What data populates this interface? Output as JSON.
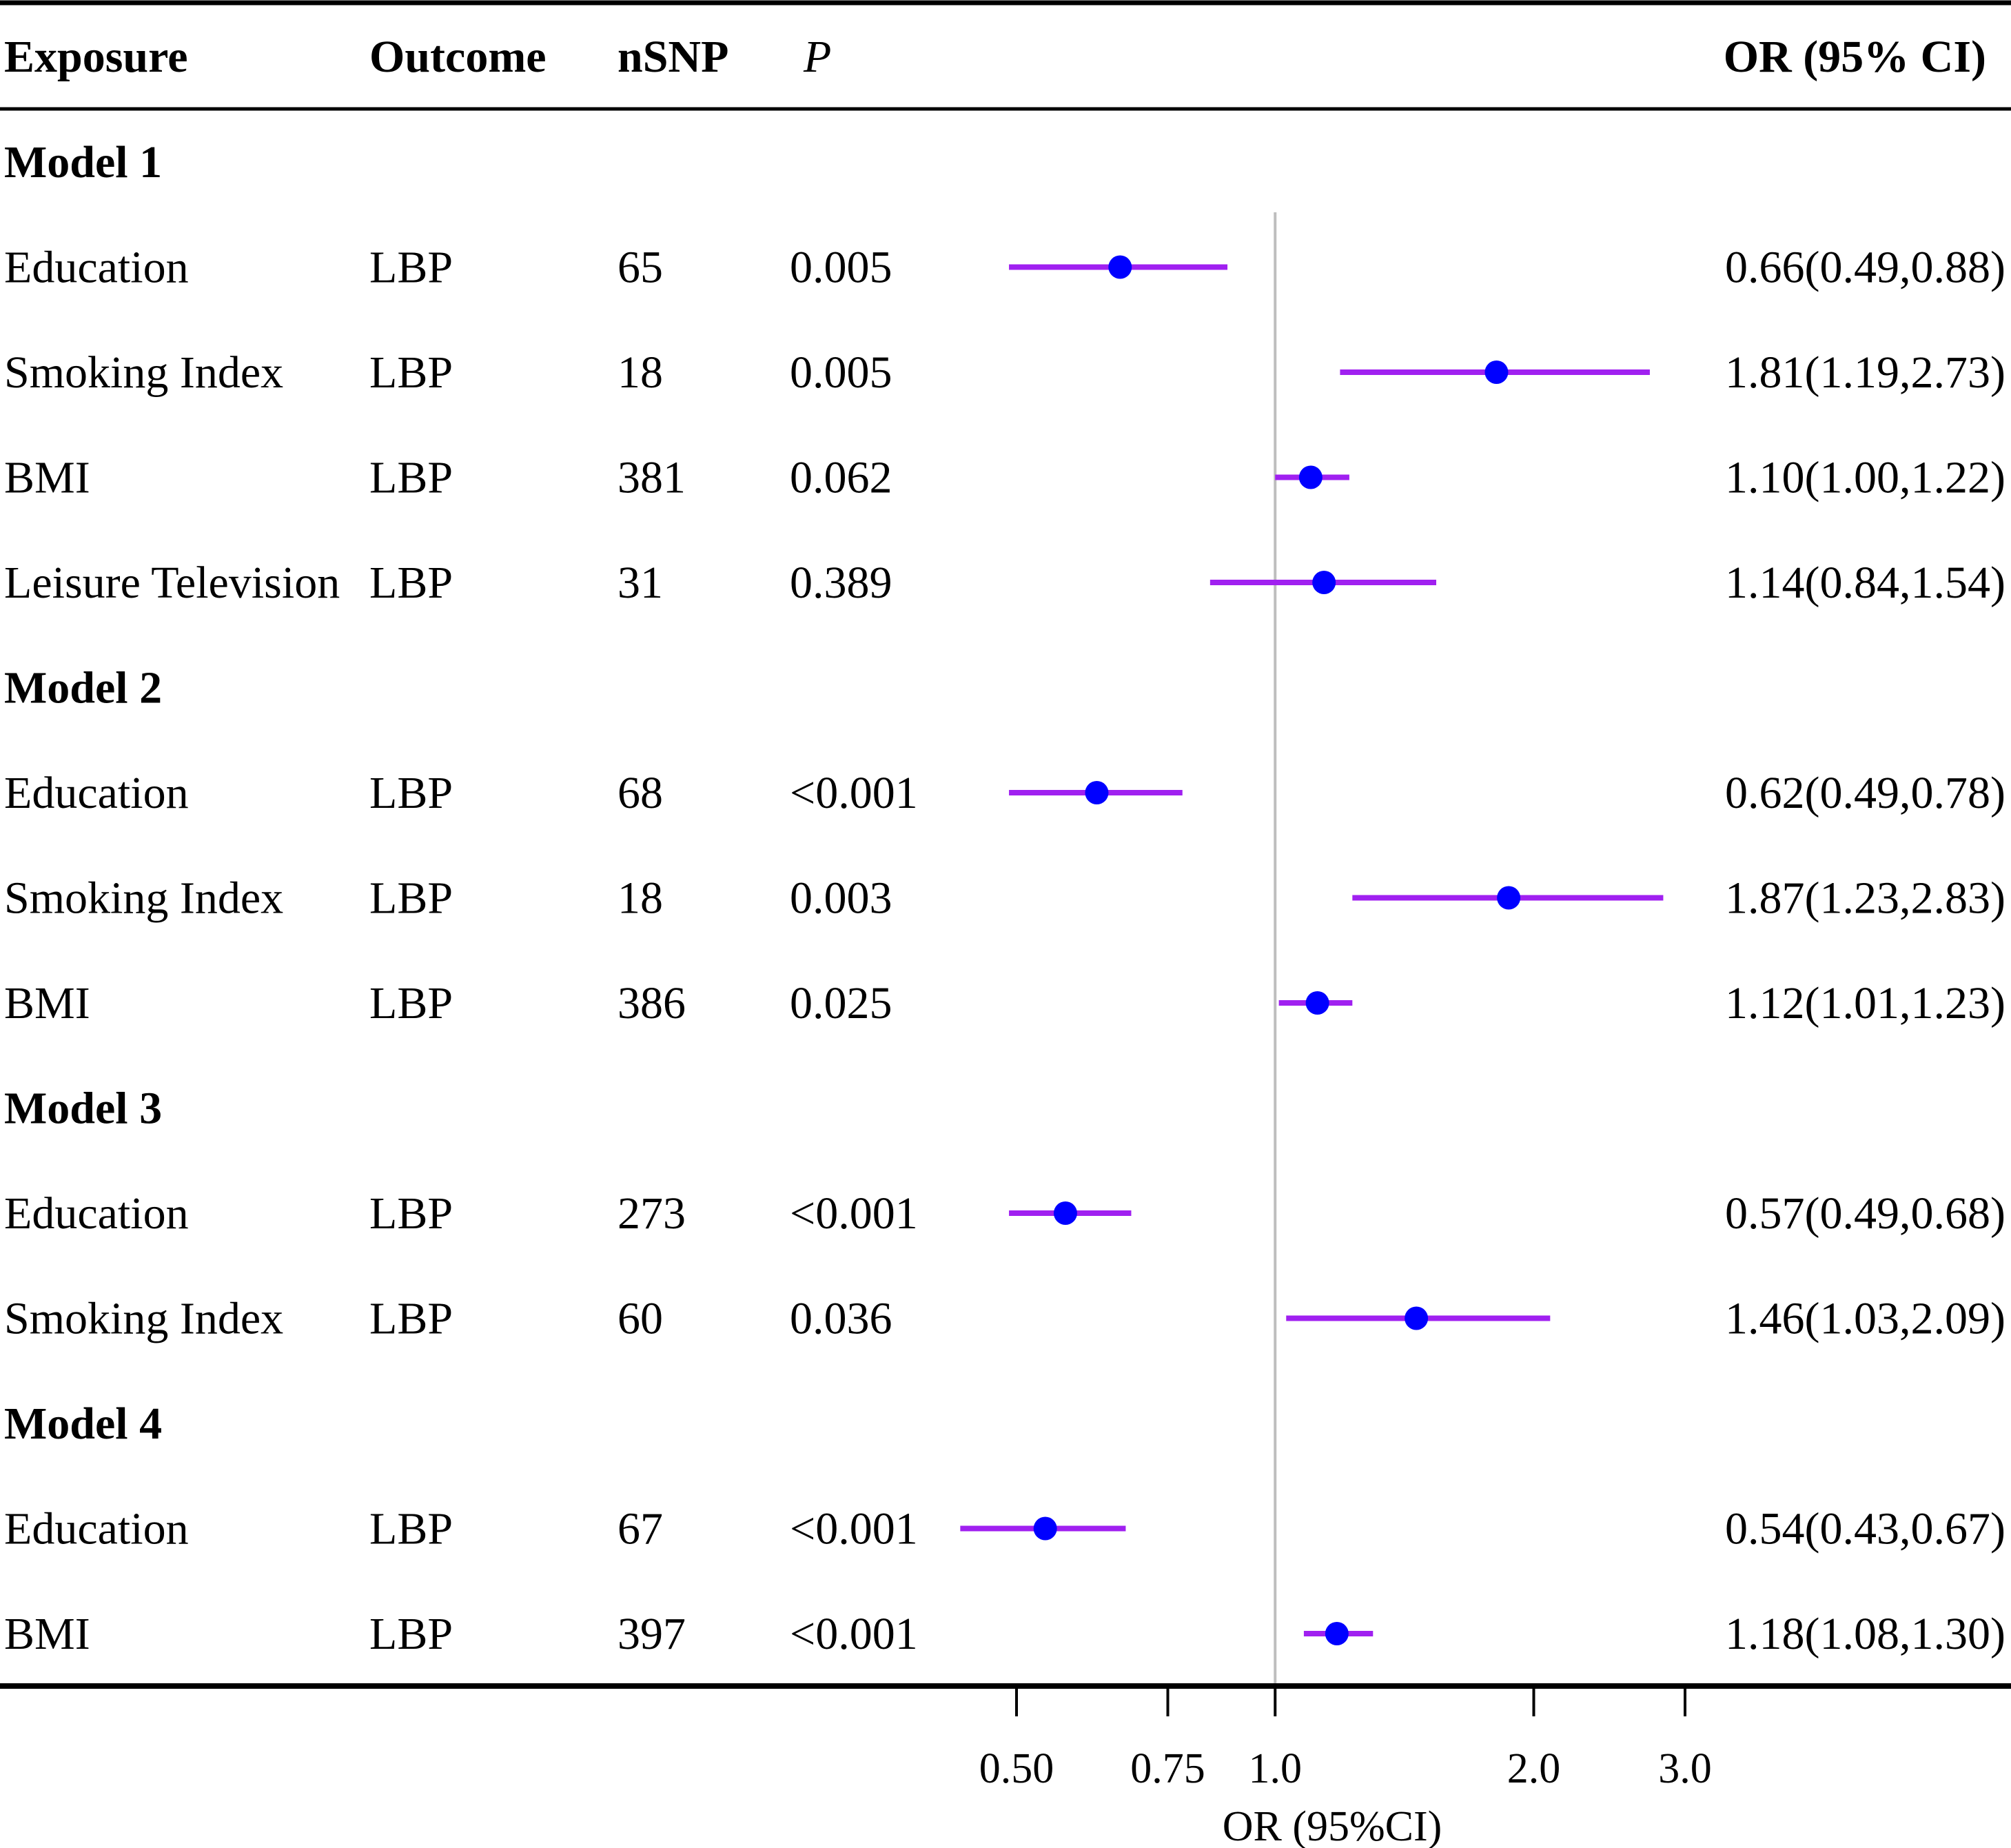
{
  "chart_data": {
    "type": "forest",
    "title": "",
    "columns": {
      "exposure": "Exposure",
      "outcome": "Outcome",
      "nsnp": "nSNP",
      "p": "P",
      "or_ci": "OR (95% CI)"
    },
    "xlabel": "OR (95%CI)",
    "x_scale": "log",
    "xlim": [
      0.44,
      3.4
    ],
    "reference_line": 1.0,
    "ticks": [
      {
        "value": 0.5,
        "label": "0.50"
      },
      {
        "value": 0.75,
        "label": "0.75"
      },
      {
        "value": 1.0,
        "label": "1.0"
      },
      {
        "value": 2.0,
        "label": "2.0"
      },
      {
        "value": 3.0,
        "label": "3.0"
      }
    ],
    "groups": [
      {
        "label": "Model 1",
        "rows": [
          {
            "exposure": "Education",
            "outcome": "LBP",
            "nsnp": "65",
            "p": "0.005",
            "or": 0.66,
            "lo": 0.49,
            "hi": 0.88,
            "text": "0.66(0.49,0.88)"
          },
          {
            "exposure": "Smoking Index",
            "outcome": "LBP",
            "nsnp": "18",
            "p": "0.005",
            "or": 1.81,
            "lo": 1.19,
            "hi": 2.73,
            "text": "1.81(1.19,2.73)"
          },
          {
            "exposure": "BMI",
            "outcome": "LBP",
            "nsnp": "381",
            "p": "0.062",
            "or": 1.1,
            "lo": 1.0,
            "hi": 1.22,
            "text": "1.10(1.00,1.22)"
          },
          {
            "exposure": "Leisure Television",
            "outcome": "LBP",
            "nsnp": "31",
            "p": "0.389",
            "or": 1.14,
            "lo": 0.84,
            "hi": 1.54,
            "text": "1.14(0.84,1.54)"
          }
        ]
      },
      {
        "label": "Model 2",
        "rows": [
          {
            "exposure": "Education",
            "outcome": "LBP",
            "nsnp": "68",
            "p": "<0.001",
            "or": 0.62,
            "lo": 0.49,
            "hi": 0.78,
            "text": "0.62(0.49,0.78)"
          },
          {
            "exposure": "Smoking Index",
            "outcome": "LBP",
            "nsnp": "18",
            "p": "0.003",
            "or": 1.87,
            "lo": 1.23,
            "hi": 2.83,
            "text": "1.87(1.23,2.83)"
          },
          {
            "exposure": "BMI",
            "outcome": "LBP",
            "nsnp": "386",
            "p": "0.025",
            "or": 1.12,
            "lo": 1.01,
            "hi": 1.23,
            "text": "1.12(1.01,1.23)"
          }
        ]
      },
      {
        "label": "Model 3",
        "rows": [
          {
            "exposure": "Education",
            "outcome": "LBP",
            "nsnp": "273",
            "p": "<0.001",
            "or": 0.57,
            "lo": 0.49,
            "hi": 0.68,
            "text": "0.57(0.49,0.68)"
          },
          {
            "exposure": "Smoking Index",
            "outcome": "LBP",
            "nsnp": "60",
            "p": "0.036",
            "or": 1.46,
            "lo": 1.03,
            "hi": 2.09,
            "text": "1.46(1.03,2.09)"
          }
        ]
      },
      {
        "label": "Model 4",
        "rows": [
          {
            "exposure": "Education",
            "outcome": "LBP",
            "nsnp": "67",
            "p": "<0.001",
            "or": 0.54,
            "lo": 0.43,
            "hi": 0.67,
            "text": "0.54(0.43,0.67)"
          },
          {
            "exposure": "BMI",
            "outcome": "LBP",
            "nsnp": "397",
            "p": "<0.001",
            "or": 1.18,
            "lo": 1.08,
            "hi": 1.3,
            "text": "1.18(1.08,1.30)"
          }
        ]
      }
    ],
    "colors": {
      "ci_line": "#a020f0",
      "point": "#0000ff",
      "reference": "#bebebe",
      "rule": "#000000"
    }
  }
}
